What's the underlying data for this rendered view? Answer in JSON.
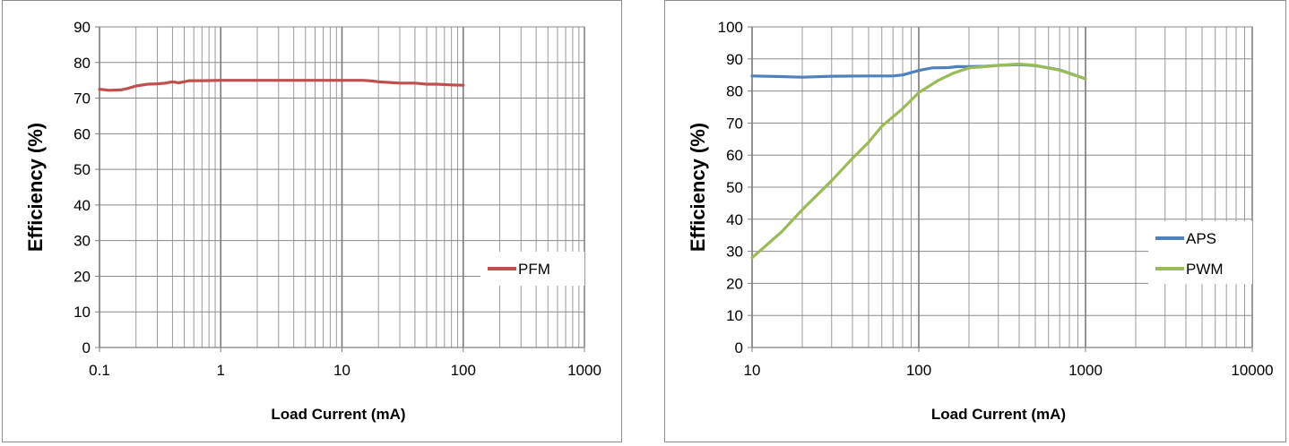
{
  "chart_data": [
    {
      "type": "line",
      "title": "",
      "xlabel": "Load Current (mA)",
      "ylabel": "Efficiency (%)",
      "xscale": "log",
      "xlim": [
        0.1,
        1000
      ],
      "ylim": [
        0,
        90
      ],
      "x_ticks": [
        "0.1",
        "1",
        "10",
        "100",
        "1000"
      ],
      "y_ticks": [
        "0",
        "10",
        "20",
        "30",
        "40",
        "50",
        "60",
        "70",
        "80",
        "90"
      ],
      "grid": true,
      "legend_position": "right",
      "series": [
        {
          "name": "PFM",
          "color": "#c0504d",
          "x": [
            0.1,
            0.12,
            0.15,
            0.17,
            0.2,
            0.25,
            0.3,
            0.35,
            0.4,
            0.45,
            0.5,
            0.55,
            0.7,
            1,
            2,
            5,
            10,
            15,
            18,
            20,
            25,
            30,
            40,
            50,
            60,
            80,
            100
          ],
          "y": [
            72.5,
            72.2,
            72.3,
            72.7,
            73.4,
            73.9,
            74.0,
            74.2,
            74.6,
            74.3,
            74.6,
            74.9,
            74.9,
            75.0,
            75.0,
            75.0,
            75.0,
            75.0,
            74.8,
            74.6,
            74.4,
            74.2,
            74.2,
            73.9,
            73.9,
            73.7,
            73.6
          ]
        }
      ]
    },
    {
      "type": "line",
      "title": "",
      "xlabel": "Load Current (mA)",
      "ylabel": "Efficiency (%)",
      "xscale": "log",
      "xlim": [
        10,
        10000
      ],
      "ylim": [
        0,
        100
      ],
      "x_ticks": [
        "10",
        "100",
        "1000",
        "10000"
      ],
      "y_ticks": [
        "0",
        "10",
        "20",
        "30",
        "40",
        "50",
        "60",
        "70",
        "80",
        "90",
        "100"
      ],
      "grid": true,
      "legend_position": "right",
      "series": [
        {
          "name": "APS",
          "color": "#4f81bd",
          "x": [
            10,
            15,
            20,
            30,
            50,
            70,
            80,
            100,
            120,
            150,
            170,
            200,
            250,
            300,
            400,
            500,
            700,
            1000
          ],
          "y": [
            84.7,
            84.5,
            84.3,
            84.6,
            84.7,
            84.7,
            85.0,
            86.4,
            87.2,
            87.3,
            87.6,
            87.6,
            87.7,
            88.0,
            88.2,
            87.9,
            86.6,
            83.8
          ]
        },
        {
          "name": "PWM",
          "color": "#9bbb59",
          "x": [
            10,
            15,
            20,
            30,
            40,
            50,
            60,
            80,
            100,
            130,
            160,
            200,
            250,
            300,
            400,
            500,
            700,
            1000
          ],
          "y": [
            28,
            36,
            43,
            52,
            59,
            64,
            69,
            74.5,
            79.5,
            83.2,
            85.5,
            87.2,
            87.6,
            88.0,
            88.4,
            88.0,
            86.5,
            83.8
          ]
        }
      ]
    }
  ]
}
